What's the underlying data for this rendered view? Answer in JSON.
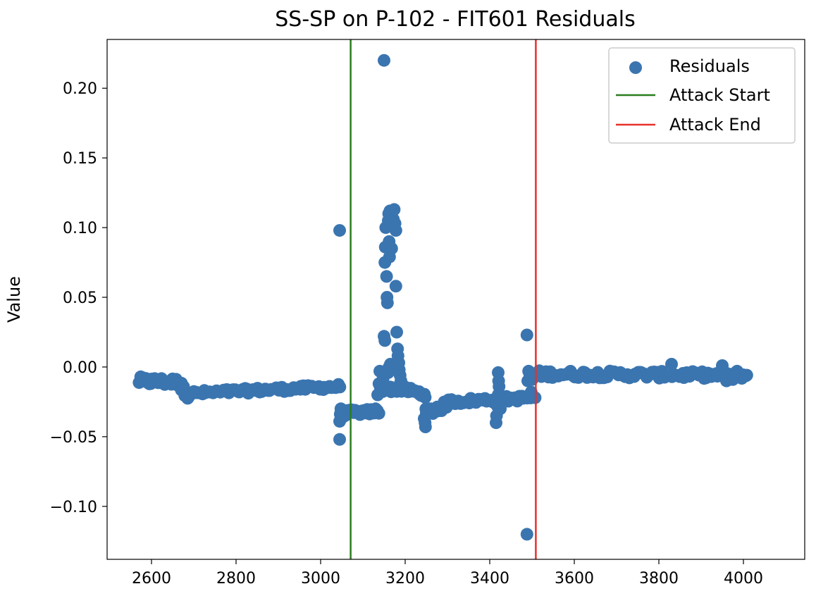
{
  "chart_data": {
    "type": "scatter",
    "title": "SS-SP on P-102  -  FIT601 Residuals",
    "xlabel": "",
    "ylabel": "Value",
    "xlim": [
      2495,
      4145
    ],
    "ylim": [
      -0.138,
      0.235
    ],
    "xticks": [
      2600,
      2800,
      3000,
      3200,
      3400,
      3600,
      3800,
      4000
    ],
    "xtick_labels": [
      "2600",
      "2800",
      "3000",
      "3200",
      "3400",
      "3600",
      "3800",
      "4000"
    ],
    "yticks": [
      -0.1,
      -0.05,
      0.0,
      0.05,
      0.1,
      0.15,
      0.2
    ],
    "ytick_labels": [
      "−0.10",
      "−0.05",
      "0.00",
      "0.05",
      "0.10",
      "0.15",
      "0.20"
    ],
    "grid": false,
    "legend_position": "top-right",
    "legend": [
      {
        "label": "Residuals",
        "kind": "marker",
        "color": "#3a75b0"
      },
      {
        "label": "Attack Start",
        "kind": "line",
        "color": "#2a7d1f"
      },
      {
        "label": "Attack End",
        "kind": "line",
        "color": "#e8302a"
      }
    ],
    "vlines": [
      {
        "name": "Attack Start",
        "x": 3071,
        "color": "#2a7d1f"
      },
      {
        "name": "Attack End",
        "x": 3509,
        "color": "#e8302a"
      }
    ],
    "series": [
      {
        "name": "Residuals",
        "color": "#3a75b0",
        "segments": [
          {
            "x0": 2570,
            "x1": 2670,
            "y0": -0.01,
            "y1": -0.011,
            "jitter": 0.003,
            "step": 4
          },
          {
            "x0": 2670,
            "x1": 2690,
            "y0": -0.015,
            "y1": -0.021,
            "jitter": 0.003,
            "step": 3
          },
          {
            "x0": 2690,
            "x1": 3045,
            "y0": -0.019,
            "y1": -0.014,
            "jitter": 0.0018,
            "step": 5
          },
          {
            "x0": 3045,
            "x1": 3140,
            "y0": -0.033,
            "y1": -0.032,
            "jitter": 0.002,
            "step": 4
          },
          {
            "x0": 3140,
            "x1": 3200,
            "y0": -0.016,
            "y1": -0.016,
            "jitter": 0.002,
            "step": 4
          },
          {
            "x0": 3200,
            "x1": 3250,
            "y0": -0.016,
            "y1": -0.02,
            "jitter": 0.002,
            "step": 4
          },
          {
            "x0": 3250,
            "x1": 3300,
            "y0": -0.033,
            "y1": -0.027,
            "jitter": 0.003,
            "step": 3
          },
          {
            "x0": 3300,
            "x1": 3505,
            "y0": -0.025,
            "y1": -0.022,
            "jitter": 0.002,
            "step": 5
          },
          {
            "x0": 3505,
            "x1": 4010,
            "y0": -0.005,
            "y1": -0.006,
            "jitter": 0.0025,
            "step": 5
          }
        ],
        "points": [
          [
            3045,
            0.098
          ],
          [
            3045,
            -0.052
          ],
          [
            3045,
            -0.039
          ],
          [
            3048,
            -0.03
          ],
          [
            3052,
            -0.036
          ],
          [
            3105,
            -0.033
          ],
          [
            3130,
            -0.03
          ],
          [
            3135,
            -0.02
          ],
          [
            3138,
            -0.012
          ],
          [
            3140,
            -0.003
          ],
          [
            3145,
            -0.004
          ],
          [
            3148,
            -0.008
          ],
          [
            3150,
            0.22
          ],
          [
            3150,
            0.022
          ],
          [
            3152,
            0.019
          ],
          [
            3152,
            0.075
          ],
          [
            3153,
            0.086
          ],
          [
            3154,
            0.1
          ],
          [
            3156,
            0.065
          ],
          [
            3157,
            0.05
          ],
          [
            3158,
            0.046
          ],
          [
            3160,
            0.105
          ],
          [
            3161,
            0.11
          ],
          [
            3162,
            0.09
          ],
          [
            3163,
            0.079
          ],
          [
            3164,
            0.112
          ],
          [
            3165,
            0.101
          ],
          [
            3167,
            0.108
          ],
          [
            3168,
            0.085
          ],
          [
            3170,
            0.112
          ],
          [
            3172,
            0.106
          ],
          [
            3174,
            0.113
          ],
          [
            3176,
            0.103
          ],
          [
            3178,
            0.098
          ],
          [
            3178,
            0.058
          ],
          [
            3180,
            0.025
          ],
          [
            3182,
            0.013
          ],
          [
            3183,
            0.008
          ],
          [
            3185,
            0.003
          ],
          [
            3186,
            -0.002
          ],
          [
            3188,
            -0.006
          ],
          [
            3190,
            -0.01
          ],
          [
            3160,
            -0.004
          ],
          [
            3162,
            0.0
          ],
          [
            3165,
            0.002
          ],
          [
            3245,
            -0.037
          ],
          [
            3247,
            -0.04
          ],
          [
            3248,
            -0.043
          ],
          [
            3250,
            -0.033
          ],
          [
            3415,
            -0.04
          ],
          [
            3416,
            -0.035
          ],
          [
            3418,
            -0.028
          ],
          [
            3420,
            -0.02
          ],
          [
            3420,
            -0.004
          ],
          [
            3421,
            -0.01
          ],
          [
            3422,
            -0.014
          ],
          [
            3425,
            -0.03
          ],
          [
            3428,
            -0.024
          ],
          [
            3488,
            0.023
          ],
          [
            3488,
            -0.12
          ],
          [
            3490,
            -0.01
          ],
          [
            3492,
            -0.003
          ],
          [
            3495,
            -0.006
          ],
          [
            3498,
            -0.018
          ],
          [
            3500,
            -0.009
          ],
          [
            3502,
            -0.021
          ],
          [
            3830,
            0.002
          ],
          [
            3950,
            0.001
          ],
          [
            3960,
            -0.01
          ],
          [
            3975,
            -0.009
          ],
          [
            3985,
            -0.003
          ]
        ]
      }
    ]
  }
}
